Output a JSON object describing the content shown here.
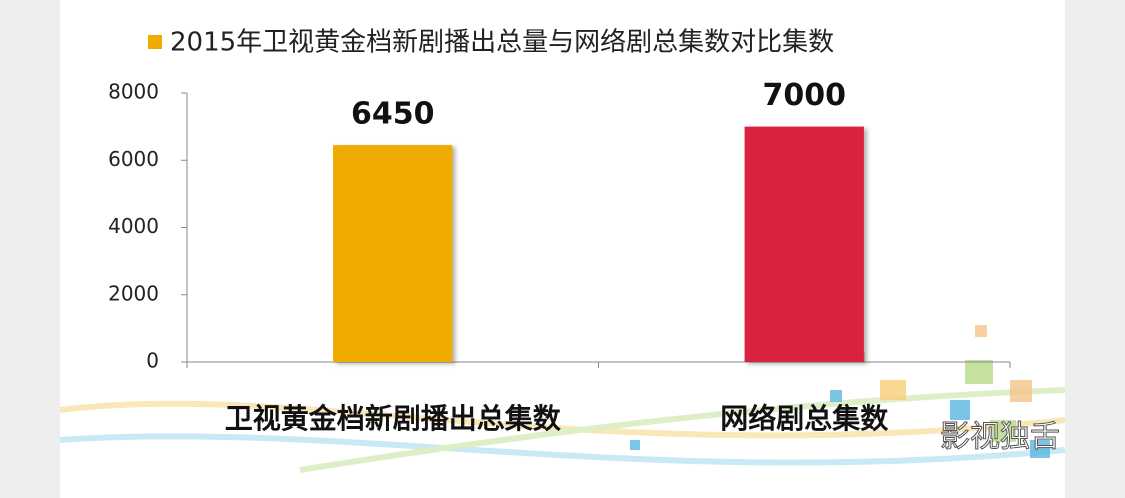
{
  "chart_data": {
    "type": "bar",
    "legend": "2015年卫视黄金档新剧播出总量与网络剧总集数对比集数",
    "categories": [
      "卫视黄金档新剧播出总集数",
      "网络剧总集数"
    ],
    "values": [
      6450,
      7000
    ],
    "colors": [
      "#f0ab00",
      "#d9243e"
    ],
    "ylim": [
      0,
      8000
    ],
    "yticks": [
      0,
      2000,
      4000,
      6000,
      8000
    ],
    "grid": false,
    "watermark": "影视独舌"
  }
}
